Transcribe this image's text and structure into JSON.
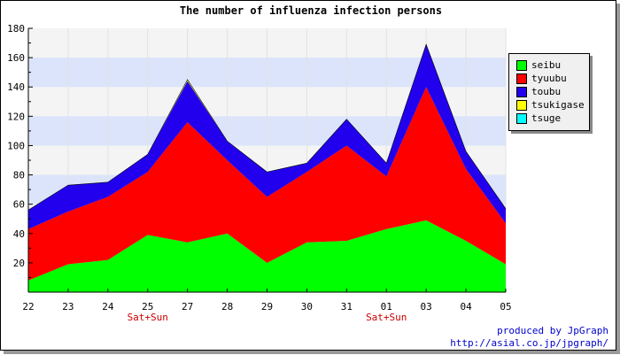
{
  "chart_data": {
    "type": "area",
    "stacked": true,
    "title": "The number of influenza infection persons",
    "categories": [
      "22",
      "23",
      "24",
      "25",
      "27",
      "28",
      "29",
      "30",
      "31",
      "01",
      "03",
      "04",
      "05"
    ],
    "category_notes": {
      "25": "Sat+Sun",
      "01": "Sat+Sun"
    },
    "ylim": [
      0,
      180
    ],
    "yticks": [
      20,
      40,
      60,
      80,
      100,
      120,
      140,
      160,
      180
    ],
    "grid": true,
    "legend_position": "right",
    "series": [
      {
        "name": "seibu",
        "color": "#00ff00",
        "values": [
          8,
          19,
          22,
          39,
          34,
          40,
          20,
          34,
          35,
          43,
          49,
          35,
          19
        ]
      },
      {
        "name": "tyuubu",
        "color": "#ff0000",
        "values": [
          35,
          36,
          43,
          43,
          82,
          50,
          45,
          48,
          65,
          36,
          91,
          49,
          28
        ]
      },
      {
        "name": "toubu",
        "color": "#2200ee",
        "values": [
          13,
          18,
          10,
          12,
          28,
          13,
          17,
          6,
          18,
          9,
          29,
          12,
          10
        ]
      },
      {
        "name": "tsukigase",
        "color": "#ffff00",
        "values": [
          0,
          0,
          0,
          0,
          1,
          0,
          0,
          0,
          0,
          0,
          0,
          0,
          0
        ]
      },
      {
        "name": "tsuge",
        "color": "#00ffff",
        "values": [
          0,
          0,
          0,
          0,
          0,
          0,
          0,
          0,
          0,
          0,
          0,
          0,
          0
        ]
      }
    ]
  },
  "credit": {
    "line1": "produced by JpGraph",
    "line2": "http://asial.co.jp/jpgraph/"
  }
}
